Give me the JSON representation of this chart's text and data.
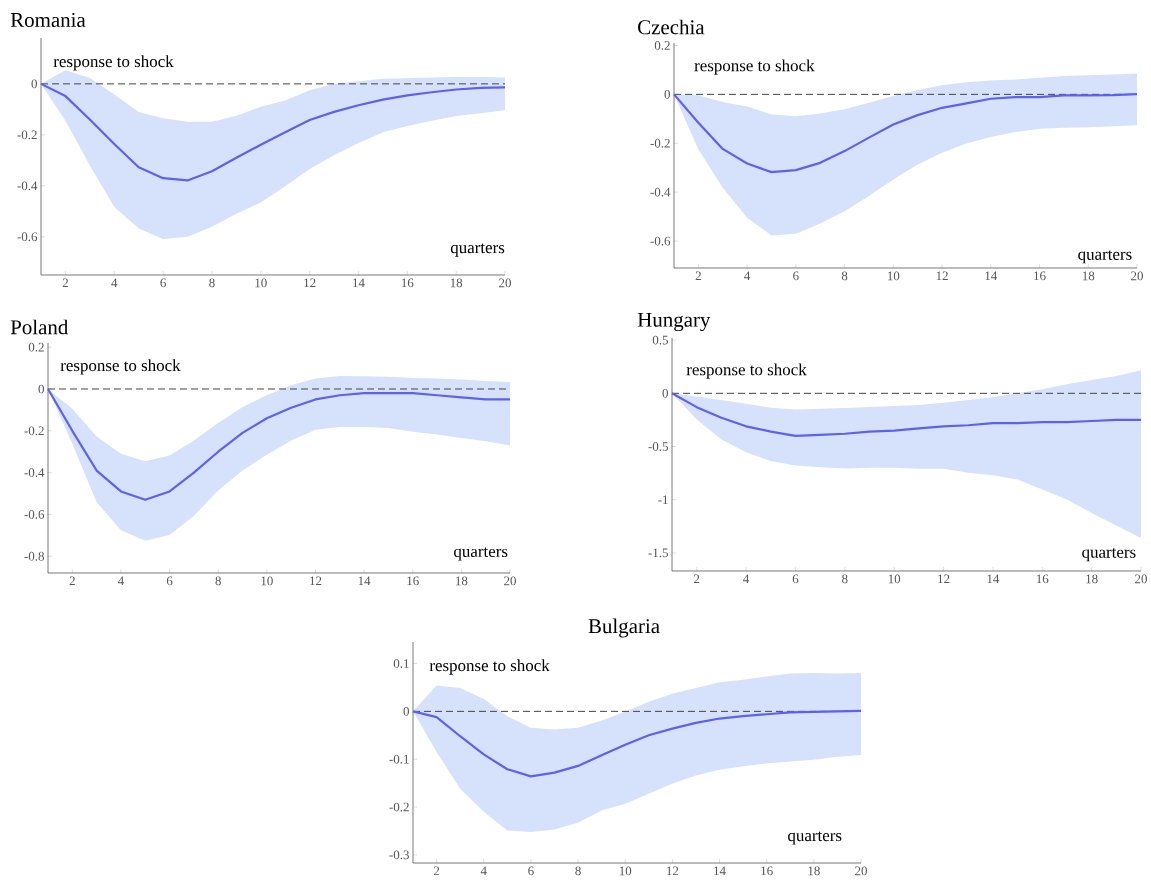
{
  "chart_data": [
    {
      "type": "line",
      "title": "Romania",
      "annotations": [
        "response to shock",
        "quarters"
      ],
      "x": [
        1,
        2,
        3,
        4,
        5,
        6,
        7,
        8,
        9,
        10,
        11,
        12,
        13,
        14,
        15,
        16,
        17,
        18,
        19,
        20
      ],
      "xlim": [
        1,
        20
      ],
      "xticks": [
        2,
        4,
        6,
        8,
        10,
        12,
        14,
        16,
        18,
        20
      ],
      "ylim": [
        -0.75,
        0.18
      ],
      "yticks": [
        -0.6,
        -0.4,
        -0.2,
        0
      ],
      "ref_lines": [
        {
          "axis": "y",
          "value": 0,
          "color": "#444444",
          "line_style": "dashed"
        }
      ],
      "series": [
        {
          "color": "#6060f0",
          "values": [
            0,
            -0.048,
            -0.14,
            -0.236,
            -0.327,
            -0.37,
            -0.379,
            -0.343,
            -0.29,
            -0.239,
            -0.19,
            -0.142,
            -0.11,
            -0.084,
            -0.062,
            -0.045,
            -0.033,
            -0.022,
            -0.016,
            -0.014
          ],
          "lower": [
            0,
            -0.145,
            -0.32,
            -0.483,
            -0.568,
            -0.609,
            -0.6,
            -0.561,
            -0.51,
            -0.466,
            -0.402,
            -0.334,
            -0.28,
            -0.232,
            -0.19,
            -0.165,
            -0.145,
            -0.126,
            -0.115,
            -0.104
          ],
          "upper": [
            0,
            0.053,
            0.023,
            -0.042,
            -0.11,
            -0.135,
            -0.149,
            -0.149,
            -0.125,
            -0.09,
            -0.065,
            -0.025,
            0.0,
            0.01,
            0.02,
            0.022,
            0.025,
            0.027,
            0.027,
            0.025
          ]
        }
      ]
    },
    {
      "type": "line",
      "title": "Czechia",
      "annotations": [
        "response to shock",
        "quarters"
      ],
      "x": [
        1,
        2,
        3,
        4,
        5,
        6,
        7,
        8,
        9,
        10,
        11,
        12,
        13,
        14,
        15,
        16,
        17,
        18,
        19,
        20
      ],
      "xlim": [
        1,
        20
      ],
      "xticks": [
        2,
        4,
        6,
        8,
        10,
        12,
        14,
        16,
        18,
        20
      ],
      "ylim": [
        -0.71,
        0.21
      ],
      "yticks": [
        -0.6,
        -0.4,
        -0.2,
        0,
        0.2
      ],
      "ref_lines": [
        {
          "axis": "y",
          "value": 0,
          "color": "#444444",
          "line_style": "dashed"
        }
      ],
      "series": [
        {
          "color": "#6060f0",
          "values": [
            0,
            -0.116,
            -0.223,
            -0.283,
            -0.318,
            -0.31,
            -0.28,
            -0.232,
            -0.177,
            -0.123,
            -0.085,
            -0.055,
            -0.037,
            -0.018,
            -0.011,
            -0.011,
            -0.004,
            -0.004,
            -0.003,
            0.001
          ],
          "lower": [
            0,
            -0.225,
            -0.382,
            -0.505,
            -0.577,
            -0.57,
            -0.528,
            -0.478,
            -0.416,
            -0.348,
            -0.287,
            -0.239,
            -0.201,
            -0.174,
            -0.154,
            -0.141,
            -0.137,
            -0.134,
            -0.13,
            -0.126
          ],
          "upper": [
            0,
            -0.004,
            -0.031,
            -0.05,
            -0.082,
            -0.089,
            -0.078,
            -0.061,
            -0.034,
            -0.007,
            0.018,
            0.037,
            0.05,
            0.057,
            0.061,
            0.068,
            0.075,
            0.078,
            0.081,
            0.085
          ]
        }
      ]
    },
    {
      "type": "line",
      "title": "Poland",
      "annotations": [
        "response to shock",
        "quarters"
      ],
      "x": [
        1,
        2,
        3,
        4,
        5,
        6,
        7,
        8,
        9,
        10,
        11,
        12,
        13,
        14,
        15,
        16,
        17,
        18,
        19,
        20
      ],
      "xlim": [
        1,
        20
      ],
      "xticks": [
        2,
        4,
        6,
        8,
        10,
        12,
        14,
        16,
        18,
        20
      ],
      "ylim": [
        -0.88,
        0.22
      ],
      "yticks": [
        -0.8,
        -0.6,
        -0.4,
        -0.2,
        0,
        0.2
      ],
      "ref_lines": [
        {
          "axis": "y",
          "value": 0,
          "color": "#444444",
          "line_style": "dashed"
        }
      ],
      "series": [
        {
          "color": "#6060f0",
          "values": [
            0,
            -0.2,
            -0.39,
            -0.49,
            -0.53,
            -0.49,
            -0.4,
            -0.3,
            -0.21,
            -0.14,
            -0.09,
            -0.05,
            -0.03,
            -0.02,
            -0.02,
            -0.02,
            -0.03,
            -0.04,
            -0.05,
            -0.05
          ],
          "lower": [
            0,
            -0.262,
            -0.542,
            -0.675,
            -0.726,
            -0.698,
            -0.606,
            -0.486,
            -0.39,
            -0.314,
            -0.246,
            -0.195,
            -0.182,
            -0.182,
            -0.186,
            -0.204,
            -0.218,
            -0.234,
            -0.25,
            -0.27
          ],
          "upper": [
            0,
            -0.094,
            -0.227,
            -0.31,
            -0.346,
            -0.318,
            -0.246,
            -0.163,
            -0.086,
            -0.03,
            0.018,
            0.05,
            0.062,
            0.061,
            0.058,
            0.053,
            0.05,
            0.045,
            0.038,
            0.034
          ]
        }
      ]
    },
    {
      "type": "line",
      "title": "Hungary",
      "annotations": [
        "response to shock",
        "quarters"
      ],
      "x": [
        1,
        2,
        3,
        4,
        5,
        6,
        7,
        8,
        9,
        10,
        11,
        12,
        13,
        14,
        15,
        16,
        17,
        18,
        19,
        20
      ],
      "xlim": [
        1,
        20
      ],
      "xticks": [
        2,
        4,
        6,
        8,
        10,
        12,
        14,
        16,
        18,
        20
      ],
      "ylim": [
        -1.67,
        0.52
      ],
      "yticks": [
        -1.5,
        -1,
        -0.5,
        0,
        0.5
      ],
      "ref_lines": [
        {
          "axis": "y",
          "value": 0,
          "color": "#444444",
          "line_style": "dashed"
        }
      ],
      "series": [
        {
          "color": "#6060f0",
          "values": [
            0,
            -0.13,
            -0.23,
            -0.31,
            -0.36,
            -0.4,
            -0.39,
            -0.38,
            -0.36,
            -0.35,
            -0.33,
            -0.31,
            -0.3,
            -0.28,
            -0.28,
            -0.27,
            -0.27,
            -0.26,
            -0.25,
            -0.25
          ],
          "lower": [
            0,
            -0.245,
            -0.433,
            -0.553,
            -0.637,
            -0.678,
            -0.694,
            -0.706,
            -0.7,
            -0.7,
            -0.709,
            -0.709,
            -0.747,
            -0.769,
            -0.81,
            -0.904,
            -0.998,
            -1.124,
            -1.243,
            -1.359
          ],
          "upper": [
            0,
            -0.031,
            -0.063,
            -0.097,
            -0.135,
            -0.151,
            -0.144,
            -0.138,
            -0.129,
            -0.119,
            -0.11,
            -0.088,
            -0.063,
            -0.035,
            0.0,
            0.038,
            0.085,
            0.126,
            0.163,
            0.217
          ]
        }
      ]
    },
    {
      "type": "line",
      "title": "Bulgaria",
      "annotations": [
        "response to shock",
        "quarters"
      ],
      "x": [
        1,
        2,
        3,
        4,
        5,
        6,
        7,
        8,
        9,
        10,
        11,
        12,
        13,
        14,
        15,
        16,
        17,
        18,
        19,
        20
      ],
      "xlim": [
        1,
        20
      ],
      "xticks": [
        2,
        4,
        6,
        8,
        10,
        12,
        14,
        16,
        18,
        20
      ],
      "ylim": [
        -0.317,
        0.145
      ],
      "yticks": [
        -0.3,
        -0.2,
        -0.1,
        0,
        0.1
      ],
      "ref_lines": [
        {
          "axis": "y",
          "value": 0,
          "color": "#444444",
          "line_style": "dashed"
        }
      ],
      "series": [
        {
          "color": "#6060f0",
          "values": [
            0,
            -0.012,
            -0.052,
            -0.09,
            -0.121,
            -0.136,
            -0.128,
            -0.114,
            -0.092,
            -0.07,
            -0.05,
            -0.036,
            -0.024,
            -0.015,
            -0.01,
            -0.006,
            -0.002,
            -0.001,
            0,
            0.001
          ],
          "lower": [
            0,
            -0.085,
            -0.162,
            -0.21,
            -0.249,
            -0.252,
            -0.247,
            -0.233,
            -0.207,
            -0.193,
            -0.172,
            -0.151,
            -0.134,
            -0.122,
            -0.115,
            -0.109,
            -0.105,
            -0.101,
            -0.095,
            -0.091
          ],
          "upper": [
            0,
            0.054,
            0.049,
            0.026,
            -0.01,
            -0.034,
            -0.038,
            -0.034,
            -0.019,
            -0.001,
            0.02,
            0.037,
            0.049,
            0.061,
            0.066,
            0.073,
            0.079,
            0.08,
            0.079,
            0.08
          ]
        }
      ]
    }
  ]
}
